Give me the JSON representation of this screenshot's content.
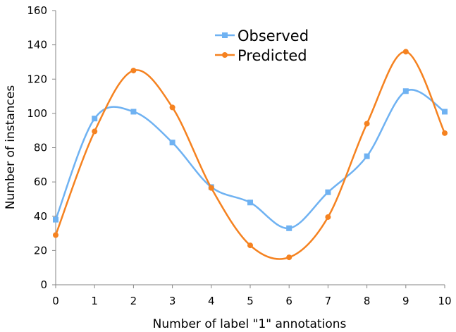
{
  "chart_data": {
    "type": "line",
    "title": "",
    "xlabel": "Number of label \"1\" annotations",
    "ylabel": "Number of instances",
    "x": [
      0,
      1,
      2,
      3,
      4,
      5,
      6,
      7,
      8,
      9,
      10
    ],
    "xlim": [
      0,
      10
    ],
    "ylim": [
      0,
      160
    ],
    "xticks": [
      0,
      1,
      2,
      3,
      4,
      5,
      6,
      7,
      8,
      9,
      10
    ],
    "yticks": [
      0,
      20,
      40,
      60,
      80,
      100,
      120,
      140,
      160
    ],
    "grid": false,
    "smooth": true,
    "legend_position": "top-center",
    "series": [
      {
        "name": "Observed",
        "color": "#6FB2F2",
        "marker": "square",
        "values": [
          38,
          97,
          101,
          83,
          57,
          48,
          33,
          54,
          75,
          113,
          101
        ]
      },
      {
        "name": "Predicted",
        "color": "#F58220",
        "marker": "circle",
        "values": [
          29,
          89.5,
          125,
          103.5,
          56.5,
          23,
          16,
          39.5,
          94,
          136,
          88.5
        ]
      }
    ]
  }
}
